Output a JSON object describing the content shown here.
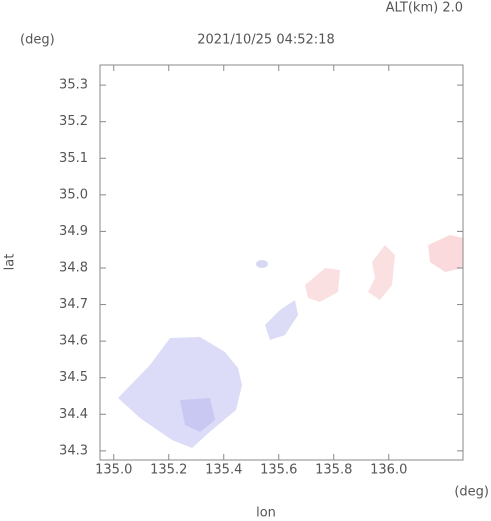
{
  "chart_data": {
    "type": "map",
    "title": "2021/10/25 04:52:18",
    "altitude_label": "ALT(km)  2.0",
    "y_unit": "(deg)",
    "x_unit": "(deg)",
    "xlabel": "lon",
    "ylabel": "lat",
    "xlim": [
      134.95,
      136.27
    ],
    "ylim": [
      34.275,
      35.355
    ],
    "xticks": [
      {
        "value": 135,
        "label": "135.0"
      },
      135.2,
      135.4,
      135.6,
      135.8,
      {
        "value": 136,
        "label": "136.0"
      }
    ],
    "yticks": [
      34.3,
      34.4,
      34.5,
      34.6,
      34.7,
      34.8,
      34.9,
      {
        "value": 35,
        "label": "35.0"
      },
      35.1,
      35.2,
      35.3
    ]
  }
}
